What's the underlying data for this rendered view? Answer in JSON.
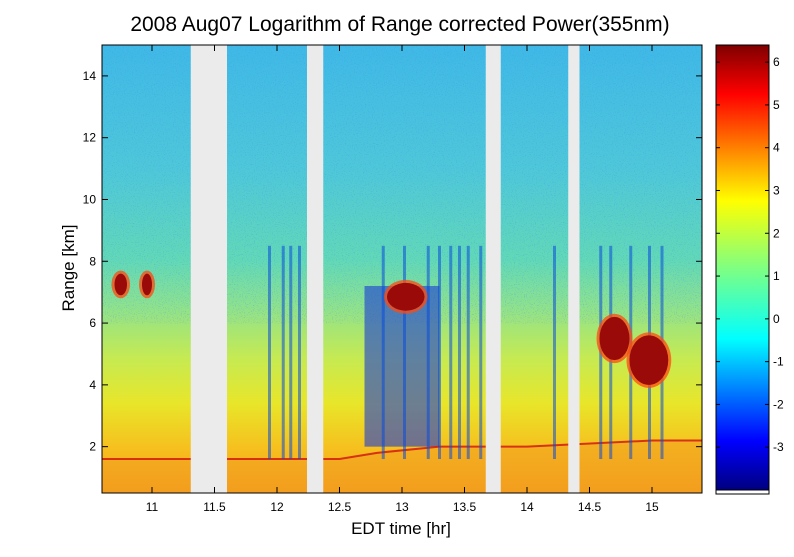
{
  "chart_data": {
    "type": "heatmap",
    "title": "2008 Aug07  Logarithm of Range corrected Power(355nm)",
    "xlabel": "EDT time [hr]",
    "ylabel": "Range [km]",
    "xlim": [
      10.6,
      15.4
    ],
    "ylim": [
      0.5,
      15.0
    ],
    "x_ticks": [
      11,
      11.5,
      12,
      12.5,
      13,
      13.5,
      14,
      14.5,
      15
    ],
    "x_tick_labels": [
      "11",
      "11.5",
      "12",
      "12.5",
      "13",
      "13.5",
      "14",
      "14.5",
      "15"
    ],
    "y_ticks": [
      2,
      4,
      6,
      8,
      10,
      12,
      14
    ],
    "y_tick_labels": [
      "2",
      "4",
      "6",
      "8",
      "10",
      "12",
      "14"
    ],
    "colorbar": {
      "min": -4.0,
      "max": 6.4,
      "ticks": [
        -3,
        -2,
        -1,
        0,
        1,
        2,
        3,
        4,
        5,
        6
      ],
      "tick_labels": [
        "-3",
        "-2",
        "-1",
        "0",
        "1",
        "2",
        "3",
        "4",
        "5",
        "6"
      ],
      "colormap": "jet"
    },
    "data_gaps_hr": [
      [
        11.31,
        11.6
      ],
      [
        12.24,
        12.37
      ],
      [
        13.67,
        13.79
      ],
      [
        14.33,
        14.42
      ]
    ],
    "boundary_layer_top_km": [
      {
        "time": 10.6,
        "range": 1.6
      },
      {
        "time": 11.9,
        "range": 1.6
      },
      {
        "time": 12.5,
        "range": 1.6
      },
      {
        "time": 12.8,
        "range": 1.8
      },
      {
        "time": 13.3,
        "range": 2.0
      },
      {
        "time": 14.0,
        "range": 2.0
      },
      {
        "time": 15.0,
        "range": 2.2
      },
      {
        "time": 15.4,
        "range": 2.2
      }
    ],
    "cloud_layers": [
      {
        "time_start": 10.7,
        "time_end": 10.8,
        "range_low": 6.9,
        "range_high": 7.6,
        "value": 6.0
      },
      {
        "time_start": 10.92,
        "time_end": 11.0,
        "range_low": 6.9,
        "range_high": 7.6,
        "value": 5.0
      },
      {
        "time_start": 12.88,
        "time_end": 13.18,
        "range_low": 6.4,
        "range_high": 7.3,
        "value": 5.5
      },
      {
        "time_start": 14.58,
        "time_end": 14.82,
        "range_low": 4.8,
        "range_high": 6.2,
        "value": 6.0
      },
      {
        "time_start": 14.82,
        "time_end": 15.13,
        "range_low": 4.0,
        "range_high": 5.6,
        "value": 5.5
      }
    ]
  }
}
